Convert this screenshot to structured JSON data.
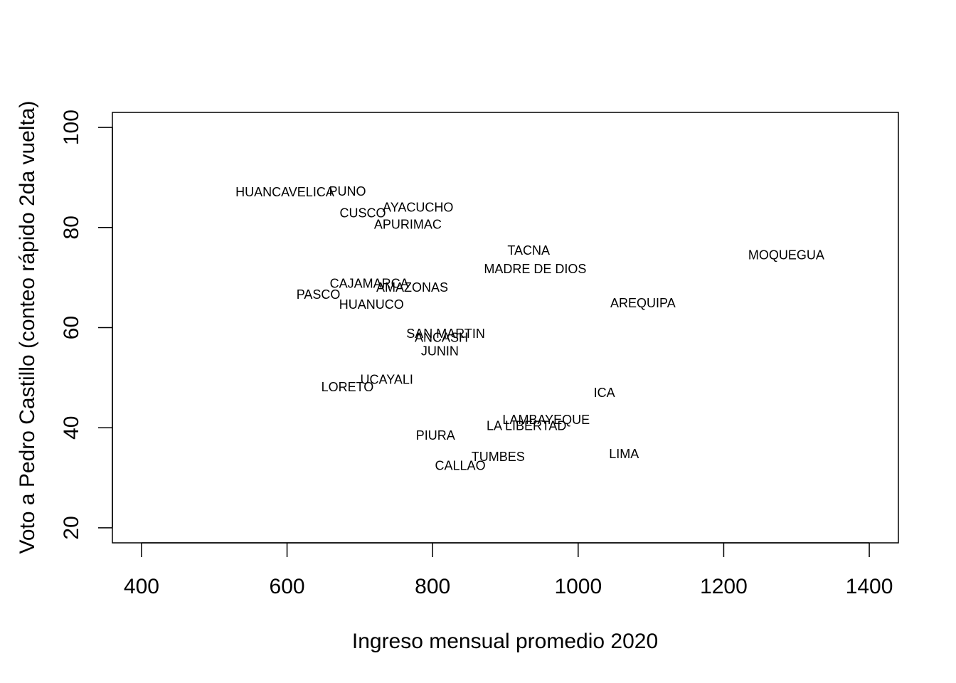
{
  "chart_data": {
    "type": "scatter",
    "title": "",
    "xlabel": "Ingreso mensual promedio 2020",
    "ylabel": "Voto a Pedro Castillo (conteo rápido 2da vuelta)",
    "xlim": [
      360,
      1440
    ],
    "ylim": [
      17,
      103
    ],
    "x_ticks": [
      400,
      600,
      800,
      1000,
      1200,
      1400
    ],
    "y_ticks": [
      20,
      40,
      60,
      80,
      100
    ],
    "x_tick_labels": [
      "400",
      "600",
      "800",
      "1000",
      "1200",
      "1400"
    ],
    "y_tick_labels": [
      "20",
      "40",
      "60",
      "80",
      "100"
    ],
    "grid": false,
    "legend": "none",
    "points": [
      {
        "label": "HUANCAVELICA",
        "x": 597,
        "y": 87.1
      },
      {
        "label": "PUNO",
        "x": 683,
        "y": 87.2
      },
      {
        "label": "CUSCO",
        "x": 704,
        "y": 82.9
      },
      {
        "label": "AYACUCHO",
        "x": 780,
        "y": 84.0
      },
      {
        "label": "APURIMAC",
        "x": 766,
        "y": 80.6
      },
      {
        "label": "TACNA",
        "x": 932,
        "y": 75.4
      },
      {
        "label": "MADRE DE DIOS",
        "x": 941,
        "y": 71.7
      },
      {
        "label": "MOQUEGUA",
        "x": 1286,
        "y": 74.5
      },
      {
        "label": "CAJAMARCA",
        "x": 713,
        "y": 68.8
      },
      {
        "label": "AMAZONAS",
        "x": 772,
        "y": 68.0
      },
      {
        "label": "PASCO",
        "x": 643,
        "y": 66.6
      },
      {
        "label": "HUANUCO",
        "x": 716,
        "y": 64.6
      },
      {
        "label": "AREQUIPA",
        "x": 1089,
        "y": 64.9
      },
      {
        "label": "SAN MARTIN",
        "x": 818,
        "y": 58.8
      },
      {
        "label": "ANCASH",
        "x": 812,
        "y": 58.0
      },
      {
        "label": "JUNIN",
        "x": 810,
        "y": 55.3
      },
      {
        "label": "UCAYALI",
        "x": 737,
        "y": 49.6
      },
      {
        "label": "LORETO",
        "x": 683,
        "y": 48.1
      },
      {
        "label": "ICA",
        "x": 1036,
        "y": 47.0
      },
      {
        "label": "LAMBAYEQUE",
        "x": 956,
        "y": 41.6
      },
      {
        "label": "LA LIBERTAD",
        "x": 929,
        "y": 40.4
      },
      {
        "label": "PIURA",
        "x": 804,
        "y": 38.5
      },
      {
        "label": "LIMA",
        "x": 1063,
        "y": 34.8
      },
      {
        "label": "TUMBES",
        "x": 890,
        "y": 34.2
      },
      {
        "label": "CALLAO",
        "x": 838,
        "y": 32.4
      }
    ]
  }
}
